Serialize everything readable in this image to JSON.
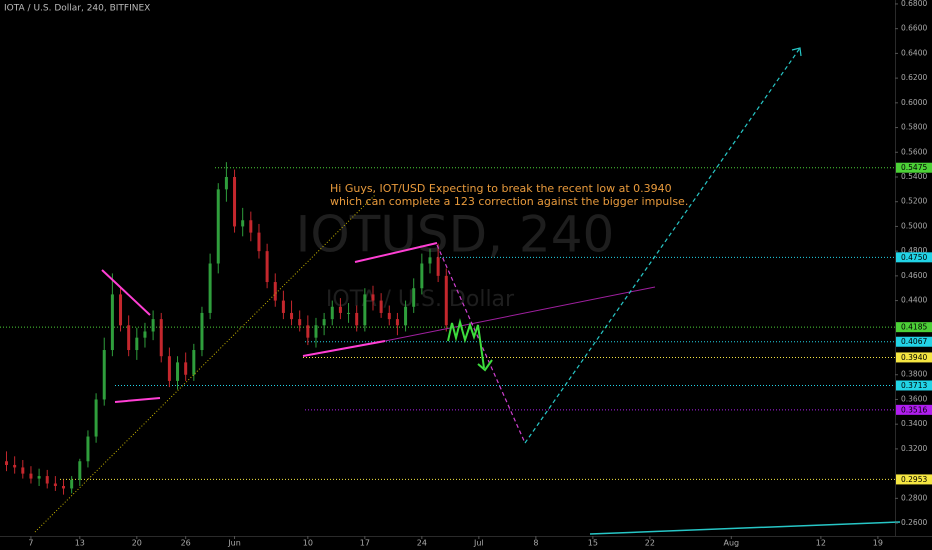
{
  "chart_data": {
    "type": "candlestick",
    "title": "IOTA / U.S. Dollar, 240, BITFINEX",
    "watermark": "IOTUSD, 240",
    "watermark_subtitle": "IOTA / U.S. Dollar",
    "annotation": [
      "Hi Guys, IOT/USD Expecting to break the recent low at 0.3940",
      "which can complete a 123 correction against the bigger  impulse."
    ],
    "up_color": "#2f9e3c",
    "down_color": "#c4272d",
    "candles": {
      "x": [
        4,
        5,
        6,
        7,
        8,
        9,
        10,
        11,
        12,
        13,
        14,
        15,
        16,
        17,
        18,
        19,
        20,
        21,
        22,
        23,
        24,
        25,
        26,
        27,
        28,
        29,
        30,
        31,
        32,
        33,
        34,
        35,
        36,
        37,
        38,
        39,
        40,
        41,
        42,
        43,
        44,
        45,
        46,
        47,
        48,
        49,
        50,
        51,
        52,
        53,
        54,
        55,
        56,
        57,
        58
      ],
      "open": [
        0.31,
        0.307,
        0.305,
        0.3,
        0.296,
        0.298,
        0.292,
        0.29,
        0.288,
        0.295,
        0.31,
        0.33,
        0.36,
        0.4,
        0.445,
        0.42,
        0.4,
        0.41,
        0.415,
        0.425,
        0.395,
        0.375,
        0.39,
        0.38,
        0.4,
        0.43,
        0.47,
        0.53,
        0.54,
        0.5,
        0.505,
        0.495,
        0.48,
        0.455,
        0.44,
        0.43,
        0.425,
        0.42,
        0.41,
        0.42,
        0.425,
        0.435,
        0.43,
        0.43,
        0.42,
        0.445,
        0.44,
        0.43,
        0.425,
        0.42,
        0.435,
        0.45,
        0.47,
        0.475,
        0.46
      ],
      "high": [
        0.318,
        0.314,
        0.311,
        0.306,
        0.304,
        0.303,
        0.298,
        0.295,
        0.298,
        0.312,
        0.335,
        0.365,
        0.41,
        0.462,
        0.45,
        0.428,
        0.418,
        0.422,
        0.432,
        0.43,
        0.402,
        0.395,
        0.398,
        0.405,
        0.435,
        0.478,
        0.535,
        0.552,
        0.546,
        0.515,
        0.512,
        0.502,
        0.486,
        0.462,
        0.448,
        0.44,
        0.432,
        0.428,
        0.426,
        0.43,
        0.44,
        0.442,
        0.438,
        0.436,
        0.45,
        0.452,
        0.446,
        0.436,
        0.43,
        0.44,
        0.458,
        0.478,
        0.482,
        0.486,
        0.466
      ],
      "low": [
        0.302,
        0.3,
        0.296,
        0.292,
        0.29,
        0.288,
        0.286,
        0.283,
        0.284,
        0.29,
        0.305,
        0.325,
        0.355,
        0.395,
        0.415,
        0.395,
        0.392,
        0.402,
        0.408,
        0.39,
        0.37,
        0.368,
        0.375,
        0.375,
        0.395,
        0.425,
        0.462,
        0.52,
        0.495,
        0.492,
        0.488,
        0.474,
        0.45,
        0.435,
        0.425,
        0.42,
        0.415,
        0.404,
        0.402,
        0.412,
        0.42,
        0.425,
        0.422,
        0.415,
        0.415,
        0.432,
        0.426,
        0.42,
        0.412,
        0.415,
        0.43,
        0.445,
        0.462,
        0.455,
        0.415
      ],
      "close": [
        0.307,
        0.305,
        0.3,
        0.296,
        0.298,
        0.292,
        0.29,
        0.288,
        0.295,
        0.31,
        0.33,
        0.36,
        0.4,
        0.445,
        0.42,
        0.4,
        0.41,
        0.415,
        0.425,
        0.395,
        0.375,
        0.39,
        0.38,
        0.4,
        0.43,
        0.47,
        0.53,
        0.54,
        0.5,
        0.505,
        0.495,
        0.48,
        0.455,
        0.44,
        0.43,
        0.425,
        0.42,
        0.41,
        0.42,
        0.425,
        0.435,
        0.43,
        0.43,
        0.42,
        0.445,
        0.44,
        0.43,
        0.425,
        0.42,
        0.435,
        0.45,
        0.47,
        0.475,
        0.46,
        0.42
      ]
    },
    "levels": [
      {
        "value": 0.5475,
        "label": "0.5475",
        "color": "#4cd137"
      },
      {
        "value": 0.475,
        "label": "0.4750",
        "color": "#22d3e6"
      },
      {
        "value": 0.4185,
        "label": "0.4185",
        "color": "#4cd137"
      },
      {
        "value": 0.4067,
        "label": "0.4067",
        "color": "#22d3e6"
      },
      {
        "value": 0.394,
        "label": "0.3940",
        "color": "#f5e642"
      },
      {
        "value": 0.3713,
        "label": "0.3713",
        "color": "#22d3e6"
      },
      {
        "value": 0.3516,
        "label": "0.3516",
        "color": "#b01ef0"
      },
      {
        "value": 0.2953,
        "label": "0.2953",
        "color": "#f5e642"
      }
    ],
    "xlim": [
      3.2,
      113.1
    ],
    "ylim": [
      0.2382,
      0.6832
    ],
    "xticks": [
      {
        "value": 7,
        "label": "7"
      },
      {
        "value": 13,
        "label": "13"
      },
      {
        "value": 20,
        "label": "20"
      },
      {
        "value": 26,
        "label": "26"
      },
      {
        "value": 32,
        "label": "Jun"
      },
      {
        "value": 41,
        "label": "10"
      },
      {
        "value": 48,
        "label": "17"
      },
      {
        "value": 55,
        "label": "24"
      },
      {
        "value": 62,
        "label": "Jul"
      },
      {
        "value": 69,
        "label": "8"
      },
      {
        "value": 76,
        "label": "15"
      },
      {
        "value": 83,
        "label": "22"
      },
      {
        "value": 93,
        "label": "Aug"
      },
      {
        "value": 104,
        "label": "12"
      },
      {
        "value": 111,
        "label": "19"
      }
    ],
    "yticks": [
      {
        "value": 0.68,
        "label": "0.6800"
      },
      {
        "value": 0.66,
        "label": "0.6600"
      },
      {
        "value": 0.64,
        "label": "0.6400"
      },
      {
        "value": 0.62,
        "label": "0.6200"
      },
      {
        "value": 0.6,
        "label": "0.6000"
      },
      {
        "value": 0.58,
        "label": "0.5800"
      },
      {
        "value": 0.56,
        "label": "0.5600"
      },
      {
        "value": 0.54,
        "label": "0.5400"
      },
      {
        "value": 0.52,
        "label": "0.5200"
      },
      {
        "value": 0.5,
        "label": "0.5000"
      },
      {
        "value": 0.48,
        "label": "0.4800"
      },
      {
        "value": 0.46,
        "label": "0.4600"
      },
      {
        "value": 0.44,
        "label": "0.4400"
      },
      {
        "value": 0.38,
        "label": "0.3800"
      },
      {
        "value": 0.36,
        "label": "0.3600"
      },
      {
        "value": 0.34,
        "label": "0.3400"
      },
      {
        "value": 0.32,
        "label": "0.3200"
      },
      {
        "value": 0.28,
        "label": "0.2800"
      },
      {
        "value": 0.26,
        "label": "0.2600"
      }
    ]
  }
}
